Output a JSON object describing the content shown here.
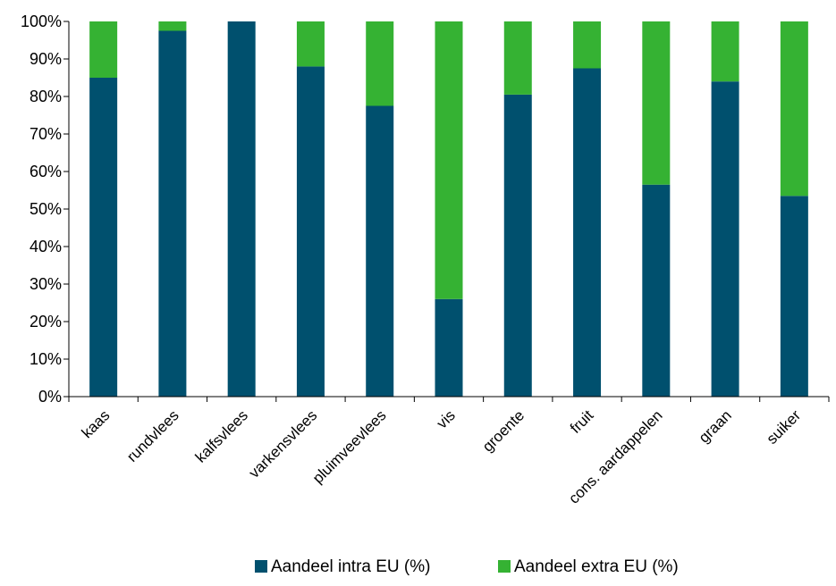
{
  "chart_data": {
    "type": "bar",
    "stacked": true,
    "categories": [
      "kaas",
      "rundvlees",
      "kalfsvlees",
      "varkensvlees",
      "pluimveevlees",
      "vis",
      "groente",
      "fruit",
      "cons. aardappelen",
      "graan",
      "suiker"
    ],
    "series": [
      {
        "name": "Aandeel intra EU  (%)",
        "color": "#00506e",
        "values": [
          85,
          97.5,
          100,
          88,
          77.5,
          26,
          80.5,
          87.5,
          56.5,
          84,
          53.5
        ]
      },
      {
        "name": "Aandeel extra EU (%)",
        "color": "#35b233",
        "values": [
          15,
          2.5,
          0,
          12,
          22.5,
          74,
          19.5,
          12.5,
          43.5,
          16,
          46.5
        ]
      }
    ],
    "ylim": [
      0,
      100
    ],
    "yticks": [
      "0%",
      "10%",
      "20%",
      "30%",
      "40%",
      "50%",
      "60%",
      "70%",
      "80%",
      "90%",
      "100%"
    ],
    "grid": false,
    "legend_position": "bottom"
  }
}
